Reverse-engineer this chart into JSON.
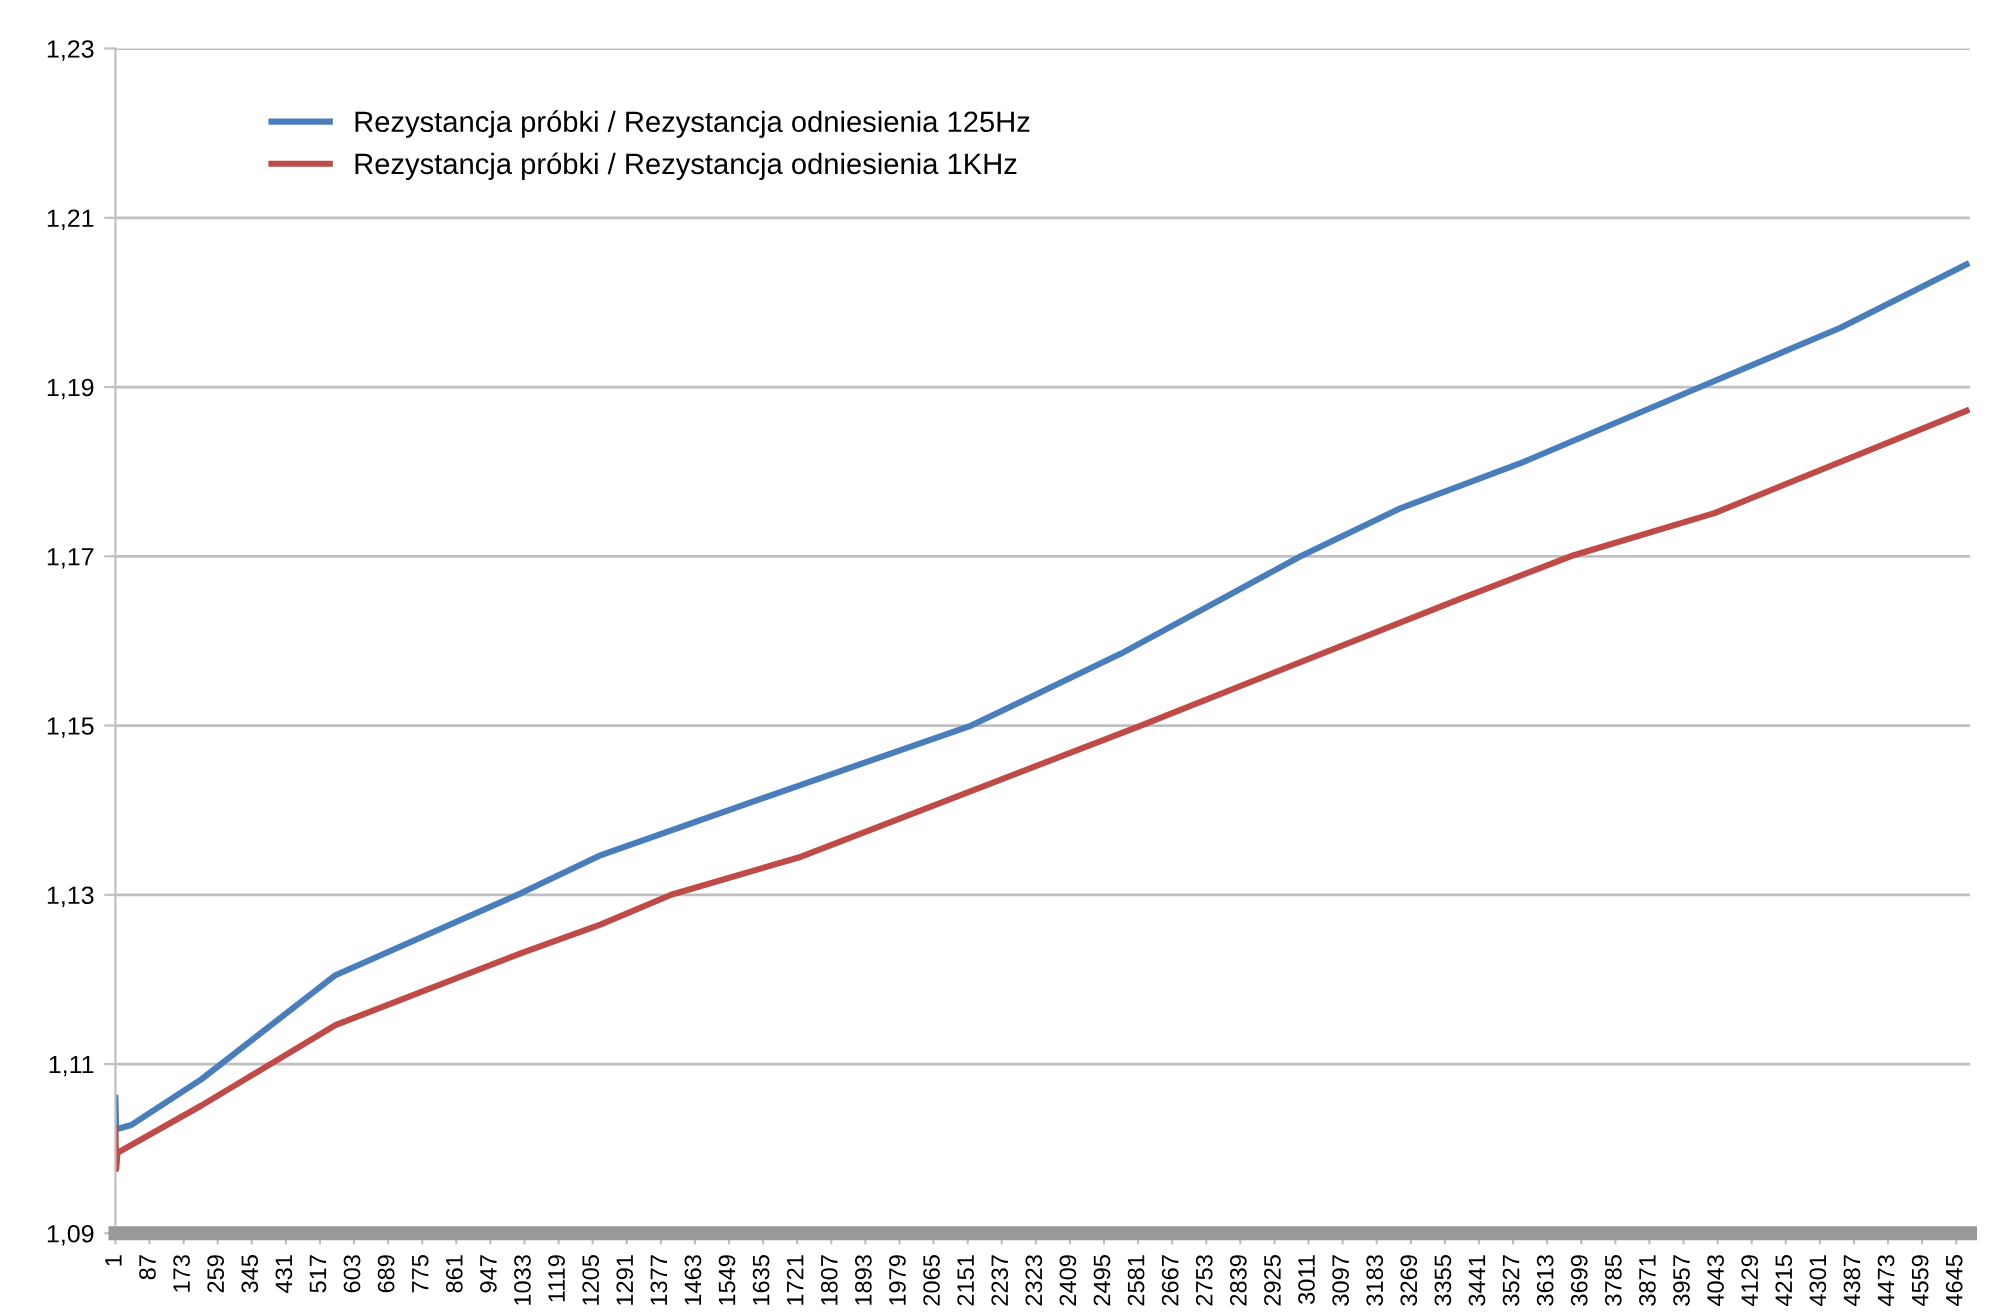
{
  "chart_data": {
    "type": "line",
    "series": [
      {
        "name": "Rezystancja próbki / Rezystancja odniesienia 125Hz",
        "color": "#4a7ebb",
        "x": [
          1,
          3,
          41,
          218,
          556,
          1025,
          1226,
          1731,
          2160,
          2538,
          2991,
          3244,
          3546,
          3999,
          4353,
          4671
        ],
        "values": [
          1.106,
          1.1023,
          1.1028,
          1.1082,
          1.1205,
          1.1302,
          1.1347,
          1.143,
          1.15,
          1.1585,
          1.17,
          1.1757,
          1.181,
          1.19,
          1.197,
          1.2045
        ]
      },
      {
        "name": "Rezystancja próbki / Rezystancja odniesienia 1KHz",
        "color": "#be4b48",
        "x": [
          1,
          3,
          6,
          218,
          556,
          1025,
          1226,
          1403,
          1731,
          2588,
          3395,
          3672,
          4035,
          4671
        ],
        "values": [
          1.1024,
          1.0976,
          1.0995,
          1.1051,
          1.1146,
          1.1231,
          1.1265,
          1.13,
          1.1345,
          1.15,
          1.165,
          1.17,
          1.1751,
          1.1872
        ]
      }
    ],
    "xlim": [
      1,
      4680
    ],
    "xticks": [
      1,
      87,
      173,
      259,
      345,
      431,
      517,
      603,
      689,
      775,
      861,
      947,
      1033,
      1119,
      1205,
      1291,
      1377,
      1463,
      1549,
      1635,
      1721,
      1807,
      1893,
      1979,
      2065,
      2151,
      2237,
      2323,
      2409,
      2495,
      2581,
      2667,
      2753,
      2839,
      2925,
      3011,
      3097,
      3183,
      3269,
      3355,
      3441,
      3527,
      3613,
      3699,
      3785,
      3871,
      3957,
      4043,
      4129,
      4215,
      4301,
      4387,
      4473,
      4559,
      4645
    ],
    "ylim": [
      1.09,
      1.23
    ],
    "yticks": [
      {
        "value": 1.09,
        "label": "1,09"
      },
      {
        "value": 1.11,
        "label": "1,11"
      },
      {
        "value": 1.13,
        "label": "1,13"
      },
      {
        "value": 1.15,
        "label": "1,15"
      },
      {
        "value": 1.17,
        "label": "1,17"
      },
      {
        "value": 1.19,
        "label": "1,19"
      },
      {
        "value": 1.21,
        "label": "1,21"
      },
      {
        "value": 1.23,
        "label": "1,23"
      }
    ],
    "grid": "y",
    "legend": "top left",
    "marker": "none",
    "line_style": "solid"
  }
}
